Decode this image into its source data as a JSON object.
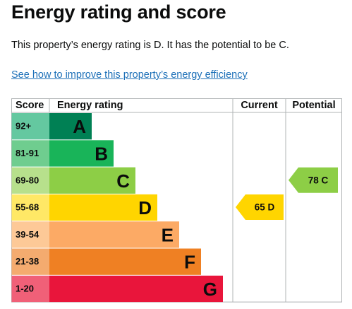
{
  "page": {
    "title": "Energy rating and score",
    "summary": "This property’s energy rating is D. It has the potential to be C.",
    "improve_link": "See how to improve this property’s energy efficiency"
  },
  "chart_data": {
    "type": "bar",
    "headers": {
      "score": "Score",
      "rating": "Energy rating",
      "current": "Current",
      "potential": "Potential"
    },
    "bands": [
      {
        "range": "92+",
        "letter": "A",
        "color": "#008054",
        "range_bg": "#64c8a0"
      },
      {
        "range": "81-91",
        "letter": "B",
        "color": "#19b459",
        "range_bg": "#6fcd8f"
      },
      {
        "range": "69-80",
        "letter": "C",
        "color": "#8dce46",
        "range_bg": "#b7e08c"
      },
      {
        "range": "55-68",
        "letter": "D",
        "color": "#ffd500",
        "range_bg": "#ffe866"
      },
      {
        "range": "39-54",
        "letter": "E",
        "color": "#fcaa65",
        "range_bg": "#fdc997"
      },
      {
        "range": "21-38",
        "letter": "F",
        "color": "#ef8023",
        "range_bg": "#f4ab6f"
      },
      {
        "range": "1-20",
        "letter": "G",
        "color": "#e9153b",
        "range_bg": "#f06078"
      }
    ],
    "current": {
      "score": 65,
      "letter": "D",
      "label": "65 D",
      "color": "#ffd500"
    },
    "potential": {
      "score": 78,
      "letter": "C",
      "label": "78 C",
      "color": "#8dce46"
    }
  }
}
